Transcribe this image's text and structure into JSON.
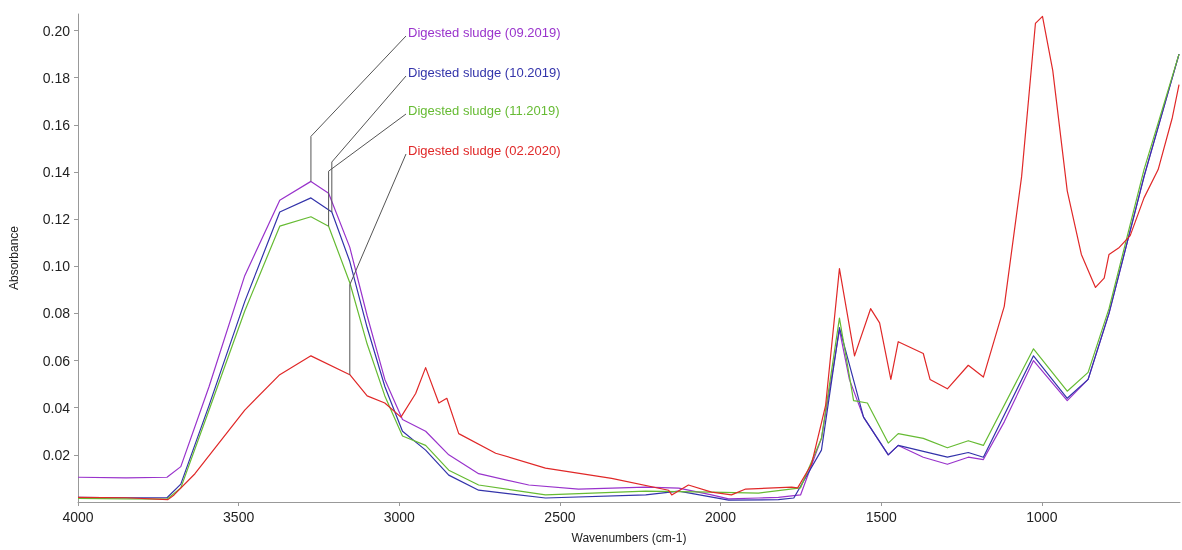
{
  "chart_data": {
    "type": "line",
    "xlabel": "Wavenumbers (cm-1)",
    "ylabel": "Absorbance",
    "xlim": [
      4000,
      570
    ],
    "ylim": [
      0,
      0.207
    ],
    "xticks": [
      4000,
      3500,
      3000,
      2500,
      2000,
      1500,
      1000
    ],
    "yticks": [
      0.02,
      0.04,
      0.06,
      0.08,
      {
        "value": 0.1,
        "label": "0.10"
      },
      0.12,
      0.14,
      0.16,
      0.18,
      {
        "value": 0.2,
        "label": "0.20"
      }
    ],
    "grid": false,
    "legend": false,
    "marker": "none",
    "line_style": "solid",
    "series": [
      {
        "name": "Digested sludge (09.2019)",
        "color": "#9933cc",
        "x": [
          4000,
          3850,
          3723,
          3680,
          3592,
          3481,
          3372,
          3275,
          3220,
          3154,
          3100,
          3045,
          2990,
          2918,
          2846,
          2753,
          2597,
          2442,
          2233,
          2130,
          2028,
          1975,
          1882,
          1820,
          1751,
          1686,
          1630,
          1599,
          1555,
          1478,
          1447,
          1369,
          1294,
          1229,
          1182,
          1117,
          1026,
          921,
          856,
          791,
          682,
          573
        ],
        "values": [
          0.0105,
          0.0102,
          0.0105,
          0.015,
          0.049,
          0.096,
          0.128,
          0.136,
          0.131,
          0.108,
          0.079,
          0.052,
          0.035,
          0.03,
          0.02,
          0.012,
          0.0072,
          0.0055,
          0.0063,
          0.0059,
          0.003,
          0.0013,
          0.0017,
          0.002,
          0.003,
          0.027,
          0.073,
          0.052,
          0.036,
          0.02,
          0.024,
          0.019,
          0.016,
          0.019,
          0.018,
          0.034,
          0.06,
          0.043,
          0.052,
          0.08,
          0.138,
          0.19
        ]
      },
      {
        "name": "Digested sludge (10.2019)",
        "color": "#3333aa",
        "x": [
          4000,
          3850,
          3723,
          3680,
          3592,
          3481,
          3372,
          3275,
          3210,
          3154,
          3100,
          3045,
          2990,
          2918,
          2846,
          2753,
          2545,
          2233,
          2130,
          1975,
          1820,
          1772,
          1686,
          1630,
          1555,
          1478,
          1447,
          1294,
          1229,
          1182,
          1026,
          921,
          856,
          791,
          682,
          573
        ],
        "values": [
          0.002,
          0.0018,
          0.0018,
          0.0076,
          0.041,
          0.085,
          0.123,
          0.129,
          0.123,
          0.102,
          0.074,
          0.049,
          0.03,
          0.022,
          0.0114,
          0.005,
          0.0017,
          0.003,
          0.0046,
          0.0008,
          0.001,
          0.0017,
          0.022,
          0.074,
          0.036,
          0.02,
          0.024,
          0.019,
          0.021,
          0.019,
          0.062,
          0.044,
          0.052,
          0.08,
          0.138,
          0.19
        ]
      },
      {
        "name": "Digested sludge (11.2019)",
        "color": "#66bb33",
        "x": [
          4000,
          3850,
          3723,
          3680,
          3592,
          3481,
          3372,
          3275,
          3220,
          3154,
          3100,
          3045,
          2990,
          2918,
          2846,
          2753,
          2545,
          2233,
          2028,
          1882,
          1751,
          1686,
          1630,
          1586,
          1543,
          1478,
          1447,
          1369,
          1294,
          1229,
          1182,
          1026,
          921,
          856,
          791,
          682,
          573
        ],
        "values": [
          0.0015,
          0.0013,
          0.0012,
          0.006,
          0.039,
          0.081,
          0.117,
          0.121,
          0.117,
          0.093,
          0.067,
          0.045,
          0.028,
          0.024,
          0.0135,
          0.0072,
          0.003,
          0.0046,
          0.0042,
          0.0038,
          0.006,
          0.027,
          0.078,
          0.043,
          0.042,
          0.025,
          0.029,
          0.027,
          0.023,
          0.026,
          0.024,
          0.065,
          0.047,
          0.055,
          0.082,
          0.141,
          0.19
        ]
      },
      {
        "name": "Digested sludge (02.2020)",
        "color": "#e02828",
        "x": [
          4000,
          3850,
          3720,
          3701,
          3636,
          3481,
          3372,
          3275,
          3154,
          3100,
          3045,
          2995,
          2949,
          2918,
          2877,
          2852,
          2815,
          2700,
          2545,
          2339,
          2162,
          2152,
          2100,
          2028,
          1966,
          1922,
          1779,
          1760,
          1717,
          1673,
          1630,
          1583,
          1533,
          1505,
          1470,
          1447,
          1369,
          1348,
          1294,
          1229,
          1182,
          1117,
          1063,
          1020,
          998,
          966,
          921,
          877,
          833,
          806,
          791,
          759,
          725,
          682,
          638,
          594,
          573
        ],
        "values": [
          0.002,
          0.0018,
          0.001,
          0.003,
          0.012,
          0.039,
          0.054,
          0.062,
          0.054,
          0.045,
          0.042,
          0.036,
          0.046,
          0.057,
          0.042,
          0.044,
          0.029,
          0.0207,
          0.0144,
          0.01,
          0.005,
          0.003,
          0.0072,
          0.0042,
          0.003,
          0.0055,
          0.0063,
          0.006,
          0.016,
          0.041,
          0.099,
          0.062,
          0.082,
          0.076,
          0.052,
          0.068,
          0.063,
          0.052,
          0.048,
          0.058,
          0.053,
          0.083,
          0.138,
          0.203,
          0.206,
          0.183,
          0.132,
          0.105,
          0.091,
          0.095,
          0.105,
          0.108,
          0.113,
          0.129,
          0.141,
          0.163,
          0.177
        ]
      }
    ]
  }
}
